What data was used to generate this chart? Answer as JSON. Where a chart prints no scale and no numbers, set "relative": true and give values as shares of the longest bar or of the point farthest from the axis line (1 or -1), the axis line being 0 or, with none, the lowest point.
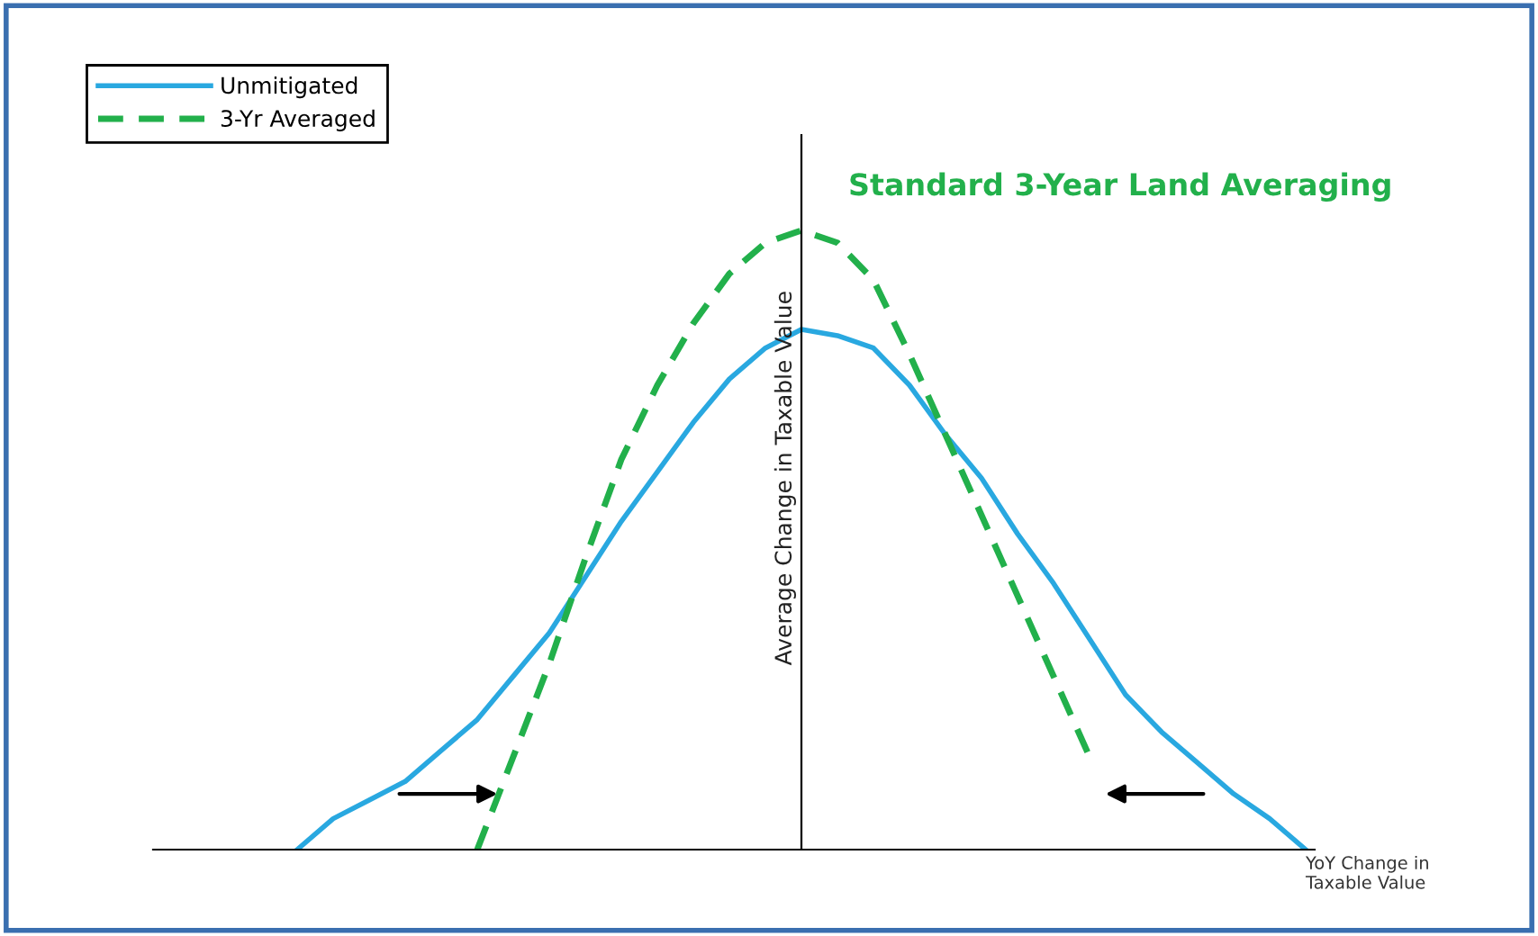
{
  "chart_data": {
    "type": "line",
    "relative": true,
    "categories": [
      null,
      null,
      null,
      null,
      null,
      null,
      null,
      null,
      null,
      null,
      null,
      null,
      null,
      null,
      null,
      null,
      null,
      null,
      null,
      null,
      null,
      null,
      null,
      null,
      null,
      null,
      null,
      null,
      null,
      null,
      null,
      null,
      null
    ],
    "series": [
      {
        "name": "Unmitigated",
        "color": "#29a8e0",
        "line_style": "solid",
        "values": [
          null,
          null,
          null,
          null,
          0,
          0.05,
          0.08,
          0.11,
          0.16,
          0.21,
          0.28,
          0.35,
          0.44,
          0.53,
          0.61,
          0.69,
          0.76,
          0.81,
          0.84,
          0.83,
          0.81,
          0.75,
          0.67,
          0.6,
          0.51,
          0.43,
          0.34,
          0.25,
          0.19,
          0.14,
          0.09,
          0.05,
          0
        ]
      },
      {
        "name": "3-Yr Averaged",
        "color": "#22b04b",
        "line_style": "dashed",
        "values": [
          null,
          null,
          null,
          null,
          null,
          null,
          null,
          null,
          null,
          0,
          0.15,
          0.3,
          0.47,
          0.63,
          0.75,
          0.85,
          0.93,
          0.98,
          1,
          0.98,
          0.92,
          0.8,
          0.67,
          0.54,
          0.41,
          0.28,
          0.15,
          null,
          null,
          null,
          null,
          null,
          null
        ]
      }
    ],
    "xlabel": "YoY Change in\nTaxable Value",
    "ylabel": "Average Change in Taxable Value",
    "annotations": [
      "Standard 3-Year Land Averaging"
    ],
    "legend": "top left",
    "marker": "none"
  }
}
